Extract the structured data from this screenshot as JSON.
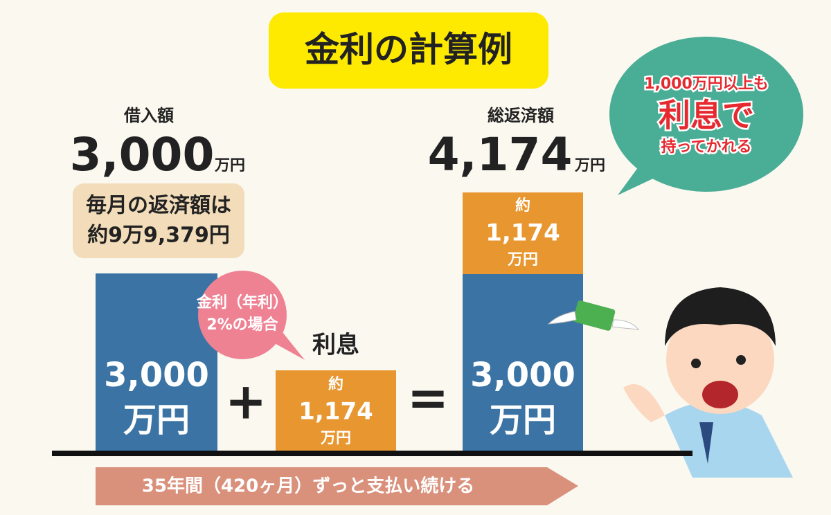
{
  "title": "金利の計算例",
  "loan": {
    "label": "借入額",
    "amount": "3,000",
    "unit": "万円"
  },
  "monthly": {
    "line1": "毎月の返済額は",
    "line2": "約9万9,379円"
  },
  "rate_bubble": {
    "line1": "金利（年利）",
    "line2": "2%の場合"
  },
  "interest_label": "利息",
  "principal_box": {
    "amount": "3,000",
    "unit": "万円"
  },
  "plus": "+",
  "interest_box": {
    "prefix": "約",
    "amount": "1,174",
    "unit": "万円"
  },
  "equals": "=",
  "total": {
    "label": "総返済額",
    "amount": "4,174",
    "unit": "万円"
  },
  "total_interest_box": {
    "prefix": "約",
    "amount": "1,174",
    "unit": "万円"
  },
  "total_principal_box": {
    "amount": "3,000",
    "unit": "万円"
  },
  "speech": {
    "line1": "1,000万円以上も",
    "line2": "利息で",
    "line3": "持ってかれる"
  },
  "arrow": "35年間（420ヶ月）ずっと支払い続ける"
}
